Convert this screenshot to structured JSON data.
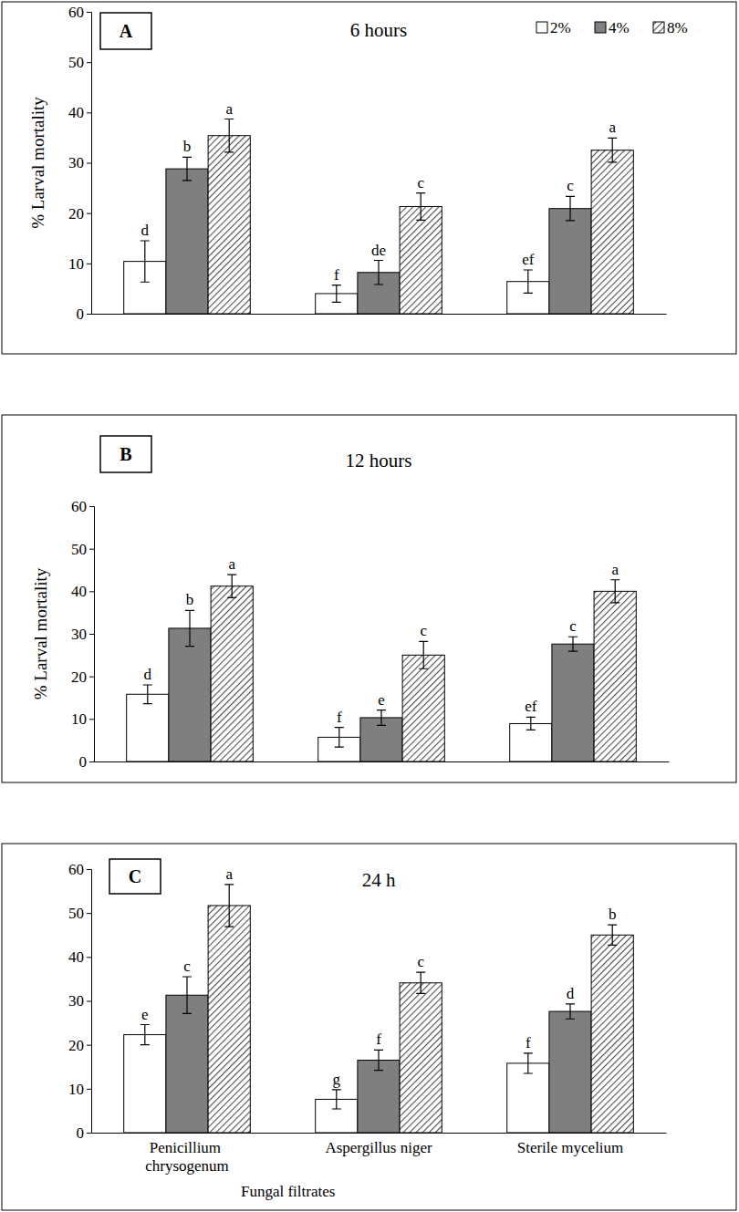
{
  "chart_data": [
    {
      "type": "bar",
      "panel": "A",
      "title": "6 hours",
      "y_label": "% Larval mortality",
      "categories": [
        null,
        null,
        null
      ],
      "series": [
        {
          "name": "2%",
          "color": "#ffffff",
          "values": [
            10.4,
            4.0,
            6.4
          ],
          "errors": [
            4.1,
            1.7,
            2.3
          ],
          "letters": [
            "d",
            "f",
            "ef"
          ]
        },
        {
          "name": "4%",
          "color": "#7f7f7f",
          "values": [
            28.8,
            8.2,
            20.9
          ],
          "errors": [
            2.3,
            2.4,
            2.4
          ],
          "letters": [
            "b",
            "de",
            "c"
          ]
        },
        {
          "name": "8%",
          "color": "#4d4d4d",
          "values": [
            35.4,
            21.3,
            32.5
          ],
          "errors": [
            3.3,
            2.7,
            2.4
          ],
          "letters": [
            "a",
            "c",
            "a"
          ]
        }
      ],
      "ylim": [
        0,
        60
      ],
      "yticks": [
        0,
        10,
        20,
        30,
        40,
        50,
        60
      ],
      "legend": "top right"
    },
    {
      "type": "bar",
      "panel": "B",
      "title": "12 hours",
      "y_label": "% Larval mortality",
      "categories": [
        null,
        null,
        null
      ],
      "series": [
        {
          "name": "2%",
          "color": "#ffffff",
          "values": [
            15.8,
            5.7,
            8.9
          ],
          "errors": [
            2.2,
            2.3,
            1.5
          ],
          "letters": [
            "d",
            "f",
            "ef"
          ]
        },
        {
          "name": "4%",
          "color": "#7f7f7f",
          "values": [
            31.3,
            10.3,
            27.6
          ],
          "errors": [
            4.2,
            1.8,
            1.7
          ],
          "letters": [
            "b",
            "e",
            "c"
          ]
        },
        {
          "name": "8%",
          "color": "#4d4d4d",
          "values": [
            41.2,
            25.0,
            40.0
          ],
          "errors": [
            2.7,
            3.2,
            2.7
          ],
          "letters": [
            "a",
            "c",
            "a"
          ]
        }
      ],
      "ylim": [
        0,
        60
      ],
      "yticks": [
        0,
        10,
        20,
        30,
        40,
        50,
        60
      ],
      "legend": false
    },
    {
      "type": "bar",
      "panel": "C",
      "title": "24 h",
      "x_label": "Fungal filtrates",
      "categories": [
        "Penicillium chrysogenum",
        "Aspergillus niger",
        "Sterile mycelium"
      ],
      "series": [
        {
          "name": "2%",
          "color": "#ffffff",
          "values": [
            22.3,
            7.6,
            15.8
          ],
          "errors": [
            2.3,
            2.2,
            2.3
          ],
          "letters": [
            "e",
            "g",
            "f"
          ]
        },
        {
          "name": "4%",
          "color": "#7f7f7f",
          "values": [
            31.3,
            16.5,
            27.6
          ],
          "errors": [
            4.2,
            2.3,
            1.7
          ],
          "letters": [
            "c",
            "f",
            "d"
          ]
        },
        {
          "name": "8%",
          "color": "#4d4d4d",
          "values": [
            51.7,
            34.1,
            45.0
          ],
          "errors": [
            4.8,
            2.4,
            2.3
          ],
          "letters": [
            "a",
            "c",
            "b"
          ]
        }
      ],
      "ylim": [
        0,
        60
      ],
      "yticks": [
        0,
        10,
        20,
        30,
        40,
        50,
        60
      ],
      "legend": false
    }
  ]
}
